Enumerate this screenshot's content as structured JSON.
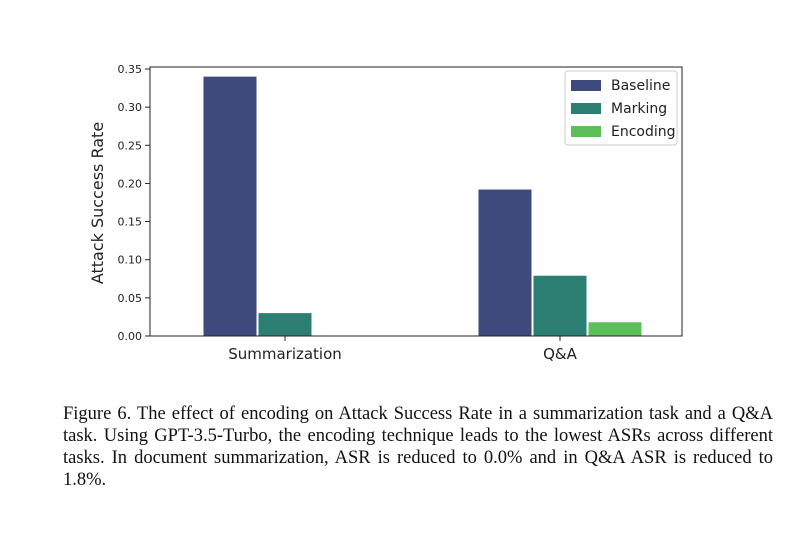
{
  "chart_data": {
    "type": "bar",
    "categories": [
      "Summarization",
      "Q&A"
    ],
    "series": [
      {
        "name": "Baseline",
        "values": [
          0.34,
          0.192
        ],
        "color": "#3f4a7c"
      },
      {
        "name": "Marking",
        "values": [
          0.03,
          0.079
        ],
        "color": "#2a7f72"
      },
      {
        "name": "Encoding",
        "values": [
          0.0,
          0.018
        ],
        "color": "#5cbf5a"
      }
    ],
    "title": "",
    "xlabel": "",
    "ylabel": "Attack Success Rate",
    "ylim": [
      0,
      0.35
    ],
    "yticks": [
      "0.00",
      "0.05",
      "0.10",
      "0.15",
      "0.20",
      "0.25",
      "0.30",
      "0.35"
    ],
    "legend_position": "top-right",
    "grid": false
  },
  "caption": "Figure 6. The effect of encoding on Attack Success Rate in a summarization task and a Q&A task. Using GPT-3.5-Turbo, the encoding technique leads to the lowest ASRs across different tasks. In document summarization, ASR is reduced to 0.0% and in Q&A ASR is reduced to 1.8%."
}
